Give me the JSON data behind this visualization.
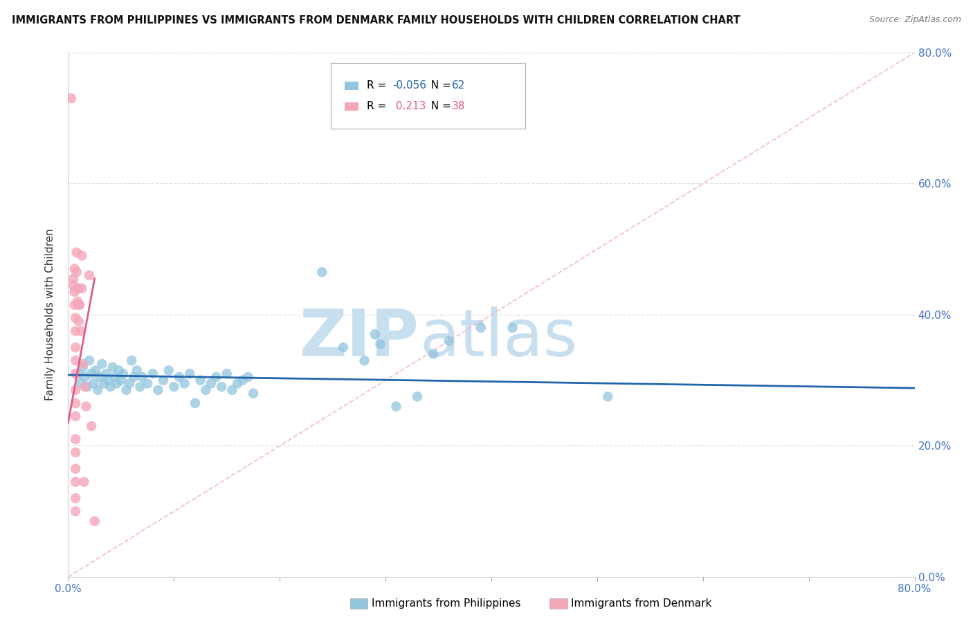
{
  "title": "IMMIGRANTS FROM PHILIPPINES VS IMMIGRANTS FROM DENMARK FAMILY HOUSEHOLDS WITH CHILDREN CORRELATION CHART",
  "source": "Source: ZipAtlas.com",
  "ylabel": "Family Households with Children",
  "legend_labels": [
    "Immigrants from Philippines",
    "Immigrants from Denmark"
  ],
  "legend_R": [
    -0.056,
    0.213
  ],
  "legend_N": [
    62,
    38
  ],
  "blue_color": "#92c5de",
  "pink_color": "#f4a7b9",
  "blue_line_color": "#2166ac",
  "pink_line_color": "#e05c8a",
  "diag_line_color": "#f4b8c8",
  "xmin": 0.0,
  "xmax": 0.8,
  "ymin": 0.0,
  "ymax": 0.8,
  "xtick_vals": [
    0.0,
    0.1,
    0.2,
    0.3,
    0.4,
    0.5,
    0.6,
    0.7,
    0.8
  ],
  "ytick_vals": [
    0.0,
    0.2,
    0.4,
    0.6,
    0.8
  ],
  "ytick_labels": [
    "0.0%",
    "20.0%",
    "40.0%",
    "60.0%",
    "80.0%"
  ],
  "blue_scatter": [
    [
      0.01,
      0.31
    ],
    [
      0.012,
      0.295
    ],
    [
      0.014,
      0.32
    ],
    [
      0.016,
      0.305
    ],
    [
      0.018,
      0.29
    ],
    [
      0.02,
      0.33
    ],
    [
      0.022,
      0.31
    ],
    [
      0.024,
      0.295
    ],
    [
      0.026,
      0.315
    ],
    [
      0.028,
      0.285
    ],
    [
      0.03,
      0.305
    ],
    [
      0.032,
      0.325
    ],
    [
      0.034,
      0.295
    ],
    [
      0.036,
      0.31
    ],
    [
      0.038,
      0.3
    ],
    [
      0.04,
      0.29
    ],
    [
      0.042,
      0.32
    ],
    [
      0.044,
      0.305
    ],
    [
      0.046,
      0.295
    ],
    [
      0.048,
      0.315
    ],
    [
      0.05,
      0.3
    ],
    [
      0.052,
      0.31
    ],
    [
      0.055,
      0.285
    ],
    [
      0.058,
      0.295
    ],
    [
      0.06,
      0.33
    ],
    [
      0.062,
      0.305
    ],
    [
      0.065,
      0.315
    ],
    [
      0.068,
      0.29
    ],
    [
      0.07,
      0.305
    ],
    [
      0.075,
      0.295
    ],
    [
      0.08,
      0.31
    ],
    [
      0.085,
      0.285
    ],
    [
      0.09,
      0.3
    ],
    [
      0.095,
      0.315
    ],
    [
      0.1,
      0.29
    ],
    [
      0.105,
      0.305
    ],
    [
      0.11,
      0.295
    ],
    [
      0.115,
      0.31
    ],
    [
      0.12,
      0.265
    ],
    [
      0.125,
      0.3
    ],
    [
      0.13,
      0.285
    ],
    [
      0.135,
      0.295
    ],
    [
      0.14,
      0.305
    ],
    [
      0.145,
      0.29
    ],
    [
      0.15,
      0.31
    ],
    [
      0.155,
      0.285
    ],
    [
      0.16,
      0.295
    ],
    [
      0.165,
      0.3
    ],
    [
      0.17,
      0.305
    ],
    [
      0.175,
      0.28
    ],
    [
      0.24,
      0.465
    ],
    [
      0.26,
      0.35
    ],
    [
      0.28,
      0.33
    ],
    [
      0.29,
      0.37
    ],
    [
      0.295,
      0.355
    ],
    [
      0.31,
      0.26
    ],
    [
      0.33,
      0.275
    ],
    [
      0.345,
      0.34
    ],
    [
      0.36,
      0.36
    ],
    [
      0.39,
      0.38
    ],
    [
      0.42,
      0.38
    ],
    [
      0.51,
      0.275
    ]
  ],
  "pink_scatter": [
    [
      0.003,
      0.73
    ],
    [
      0.005,
      0.455
    ],
    [
      0.005,
      0.445
    ],
    [
      0.006,
      0.47
    ],
    [
      0.006,
      0.435
    ],
    [
      0.006,
      0.415
    ],
    [
      0.007,
      0.395
    ],
    [
      0.007,
      0.375
    ],
    [
      0.007,
      0.35
    ],
    [
      0.007,
      0.33
    ],
    [
      0.007,
      0.31
    ],
    [
      0.007,
      0.285
    ],
    [
      0.007,
      0.265
    ],
    [
      0.007,
      0.245
    ],
    [
      0.007,
      0.21
    ],
    [
      0.007,
      0.19
    ],
    [
      0.007,
      0.165
    ],
    [
      0.007,
      0.145
    ],
    [
      0.007,
      0.12
    ],
    [
      0.007,
      0.1
    ],
    [
      0.008,
      0.495
    ],
    [
      0.008,
      0.465
    ],
    [
      0.009,
      0.44
    ],
    [
      0.009,
      0.42
    ],
    [
      0.01,
      0.44
    ],
    [
      0.01,
      0.415
    ],
    [
      0.01,
      0.39
    ],
    [
      0.011,
      0.415
    ],
    [
      0.012,
      0.375
    ],
    [
      0.013,
      0.49
    ],
    [
      0.013,
      0.44
    ],
    [
      0.014,
      0.325
    ],
    [
      0.015,
      0.145
    ],
    [
      0.016,
      0.29
    ],
    [
      0.017,
      0.26
    ],
    [
      0.02,
      0.46
    ],
    [
      0.022,
      0.23
    ],
    [
      0.025,
      0.085
    ]
  ],
  "watermark_zip": "ZIP",
  "watermark_atlas": "atlas",
  "watermark_color": "#c8dff0",
  "background_color": "#ffffff",
  "grid_color": "#dddddd",
  "blue_trend_x": [
    0.0,
    0.8
  ],
  "blue_trend_y": [
    0.308,
    0.288
  ],
  "pink_trend_x": [
    0.0,
    0.025
  ],
  "pink_trend_y": [
    0.235,
    0.455
  ]
}
